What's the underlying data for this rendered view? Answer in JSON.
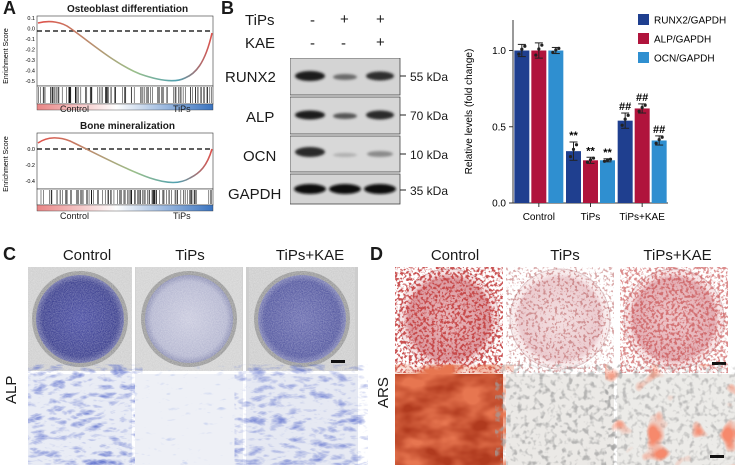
{
  "panels": {
    "a": "A",
    "b": "B",
    "c": "C",
    "d": "D"
  },
  "gsea": {
    "plot1": {
      "title": "Osteoblast differentiation",
      "ylabel": "Enrichment Score",
      "yticks": [
        "0.1",
        "0.0",
        "-0.1",
        "-0.2",
        "-0.3",
        "-0.4",
        "-0.5"
      ],
      "left": "Control",
      "right": "TiPs"
    },
    "plot2": {
      "title": "Bone mineralization",
      "ylabel": "Enrichment Score",
      "yticks": [
        "0.0",
        "-0.2",
        "-0.4"
      ],
      "left": "Control",
      "right": "TiPs"
    }
  },
  "western": {
    "rows": [
      {
        "name": "TiPs",
        "signs": [
          "-",
          "+",
          "+"
        ]
      },
      {
        "name": "KAE",
        "signs": [
          "-",
          "-",
          "+"
        ]
      }
    ],
    "bands": [
      {
        "protein": "RUNX2",
        "kda": "55 kDa"
      },
      {
        "protein": "ALP",
        "kda": "70 kDa"
      },
      {
        "protein": "OCN",
        "kda": "10 kDa"
      },
      {
        "protein": "GAPDH",
        "kda": "35 kDa"
      }
    ]
  },
  "chart_data": {
    "type": "bar",
    "categories": [
      "Control",
      "TiPs",
      "TiPs+KAE"
    ],
    "ylabel": "Relative levels (fold change)",
    "ylim": [
      0,
      1.2
    ],
    "yticks": [
      "0.0",
      "0.5",
      "1.0"
    ],
    "legend_position": "top-right",
    "series": [
      {
        "name": "RUNX2/GAPDH",
        "color": "#1f3f8f",
        "values": [
          1.0,
          0.34,
          0.54
        ],
        "errors": [
          0.04,
          0.06,
          0.05
        ],
        "marks": [
          "",
          "**",
          "##"
        ]
      },
      {
        "name": "ALP/GAPDH",
        "color": "#b0143c",
        "values": [
          1.0,
          0.28,
          0.62
        ],
        "errors": [
          0.05,
          0.02,
          0.03
        ],
        "marks": [
          "",
          "**",
          "##"
        ]
      },
      {
        "name": "OCN/GAPDH",
        "color": "#2f8fd0",
        "values": [
          1.0,
          0.28,
          0.41
        ],
        "errors": [
          0.02,
          0.01,
          0.03
        ],
        "marks": [
          "",
          "**",
          "##"
        ]
      }
    ]
  },
  "alp_stain": {
    "side_label": "ALP",
    "conditions": [
      "Control",
      "TiPs",
      "TiPs+KAE"
    ]
  },
  "ars_stain": {
    "side_label": "ARS",
    "conditions": [
      "Control",
      "TiPs",
      "TiPs+KAE"
    ]
  }
}
